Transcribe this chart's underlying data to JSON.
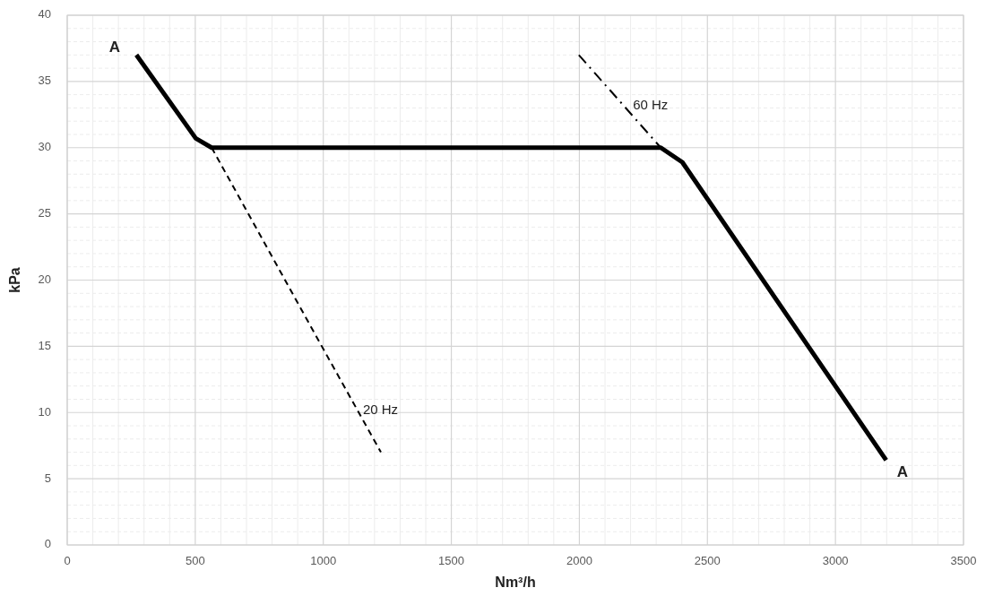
{
  "chart_data": {
    "type": "line",
    "xlabel": "Nm³/h",
    "ylabel": "kPa",
    "xlim": [
      0,
      3500
    ],
    "ylim": [
      0,
      40
    ],
    "xticks": [
      0,
      500,
      1000,
      1500,
      2000,
      2500,
      3000,
      3500
    ],
    "yticks": [
      0,
      5,
      10,
      15,
      20,
      25,
      30,
      35,
      40
    ],
    "grid": true,
    "marker": "none",
    "series": [
      {
        "color": "#000000",
        "line_style": "solid",
        "x": [
          270,
          502,
          564,
          2318,
          2402,
          3198
        ],
        "values": [
          37,
          30.7,
          30,
          30,
          28.9,
          6.4
        ]
      },
      {
        "name": "20 Hz",
        "color": "#000000",
        "line_style": "dashed",
        "x": [
          564,
          997,
          1225
        ],
        "values": [
          30,
          14.9,
          7
        ]
      },
      {
        "name": "60 Hz",
        "color": "#000000",
        "line_style": "dashdot",
        "x": [
          1998,
          2318
        ],
        "values": [
          37,
          30
        ]
      }
    ],
    "annotations": [
      {
        "text": "A",
        "x": 270,
        "y": 37
      },
      {
        "text": "A",
        "x": 3198,
        "y": 6.4
      }
    ]
  }
}
